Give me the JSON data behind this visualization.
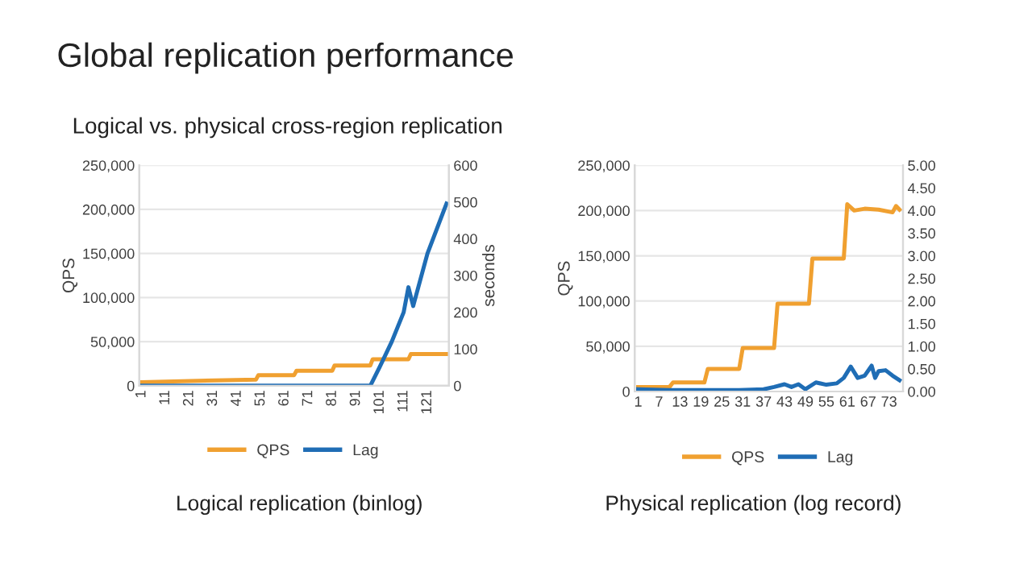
{
  "chart_data": [
    {
      "type": "line",
      "title": "Global replication performance",
      "subtitle": "Logical vs. physical cross-region replication",
      "ylabel": "QPS",
      "y2label": "seconds",
      "annotations": [
        "Logical replication (binlog)"
      ],
      "series": [
        {
          "name": "QPS",
          "color": "#f0a030",
          "x": [
            1,
            49,
            50,
            65,
            66,
            81,
            82,
            97,
            98,
            113,
            114,
            129
          ],
          "values": [
            4000,
            7000,
            12000,
            12000,
            17000,
            17000,
            23000,
            23000,
            30000,
            30000,
            36000,
            36000
          ]
        },
        {
          "name": "Lag",
          "color": "#1f6db5",
          "axis": "y2",
          "x": [
            1,
            97,
            101,
            106,
            111,
            113,
            115,
            121,
            129
          ],
          "values": [
            0,
            0,
            52,
            120,
            200,
            268,
            217,
            360,
            496
          ]
        }
      ],
      "xlim": [
        0,
        130
      ],
      "xticks": [
        1,
        11,
        21,
        31,
        41,
        51,
        61,
        71,
        81,
        91,
        101,
        111,
        121
      ],
      "ylim": [
        0,
        250000
      ],
      "yticks": [
        {
          "value": 0,
          "label": "0"
        },
        {
          "value": 50000,
          "label": "50,000"
        },
        {
          "value": 100000,
          "label": "100,000"
        },
        {
          "value": 150000,
          "label": "150,000"
        },
        {
          "value": 200000,
          "label": "200,000"
        },
        {
          "value": 250000,
          "label": "250,000"
        }
      ],
      "y2lim": [
        0,
        600
      ],
      "y2ticks": [
        0,
        100,
        200,
        300,
        400,
        500,
        600
      ],
      "grid": "y",
      "legend": "bottom"
    },
    {
      "type": "line",
      "ylabel": "QPS",
      "annotations": [
        "Physical replication (log record)"
      ],
      "series": [
        {
          "name": "QPS",
          "color": "#f0a030",
          "x": [
            1,
            10,
            11,
            20,
            21,
            30,
            31,
            40,
            41,
            50,
            51,
            60,
            61,
            63,
            66,
            70,
            74,
            75,
            76
          ],
          "values": [
            5000,
            5000,
            10000,
            10000,
            25000,
            25000,
            48000,
            48000,
            97000,
            97000,
            147000,
            147000,
            207000,
            200000,
            202000,
            201000,
            198000,
            205000,
            201000
          ]
        },
        {
          "name": "Lag",
          "color": "#1f6db5",
          "axis": "y2",
          "x": [
            1,
            10,
            20,
            30,
            37,
            40,
            43,
            45,
            47,
            49,
            52,
            55,
            58,
            60,
            62,
            64,
            66,
            68,
            69,
            70,
            72,
            74,
            76
          ],
          "values": [
            0.05,
            0.03,
            0.03,
            0.03,
            0.05,
            0.1,
            0.16,
            0.1,
            0.16,
            0.05,
            0.2,
            0.15,
            0.18,
            0.3,
            0.55,
            0.3,
            0.35,
            0.57,
            0.3,
            0.45,
            0.47,
            0.35,
            0.25
          ]
        }
      ],
      "xlim": [
        0,
        77
      ],
      "xticks": [
        1,
        7,
        13,
        19,
        25,
        31,
        37,
        43,
        49,
        55,
        61,
        67,
        73
      ],
      "ylim": [
        0,
        250000
      ],
      "yticks": [
        {
          "value": 0,
          "label": "0"
        },
        {
          "value": 50000,
          "label": "50,000"
        },
        {
          "value": 100000,
          "label": "100,000"
        },
        {
          "value": 150000,
          "label": "150,000"
        },
        {
          "value": 200000,
          "label": "200,000"
        },
        {
          "value": 250000,
          "label": "250,000"
        }
      ],
      "y2lim": [
        0,
        5
      ],
      "y2ticks": [
        {
          "value": 0,
          "label": "0.00"
        },
        {
          "value": 0.5,
          "label": "0.50"
        },
        {
          "value": 1,
          "label": "1.00"
        },
        {
          "value": 1.5,
          "label": "1.50"
        },
        {
          "value": 2,
          "label": "2.00"
        },
        {
          "value": 2.5,
          "label": "2.50"
        },
        {
          "value": 3,
          "label": "3.00"
        },
        {
          "value": 3.5,
          "label": "3.50"
        },
        {
          "value": 4,
          "label": "4.00"
        },
        {
          "value": 4.5,
          "label": "4.50"
        },
        {
          "value": 5,
          "label": "5.00"
        }
      ],
      "grid": "y",
      "legend": "bottom"
    }
  ]
}
